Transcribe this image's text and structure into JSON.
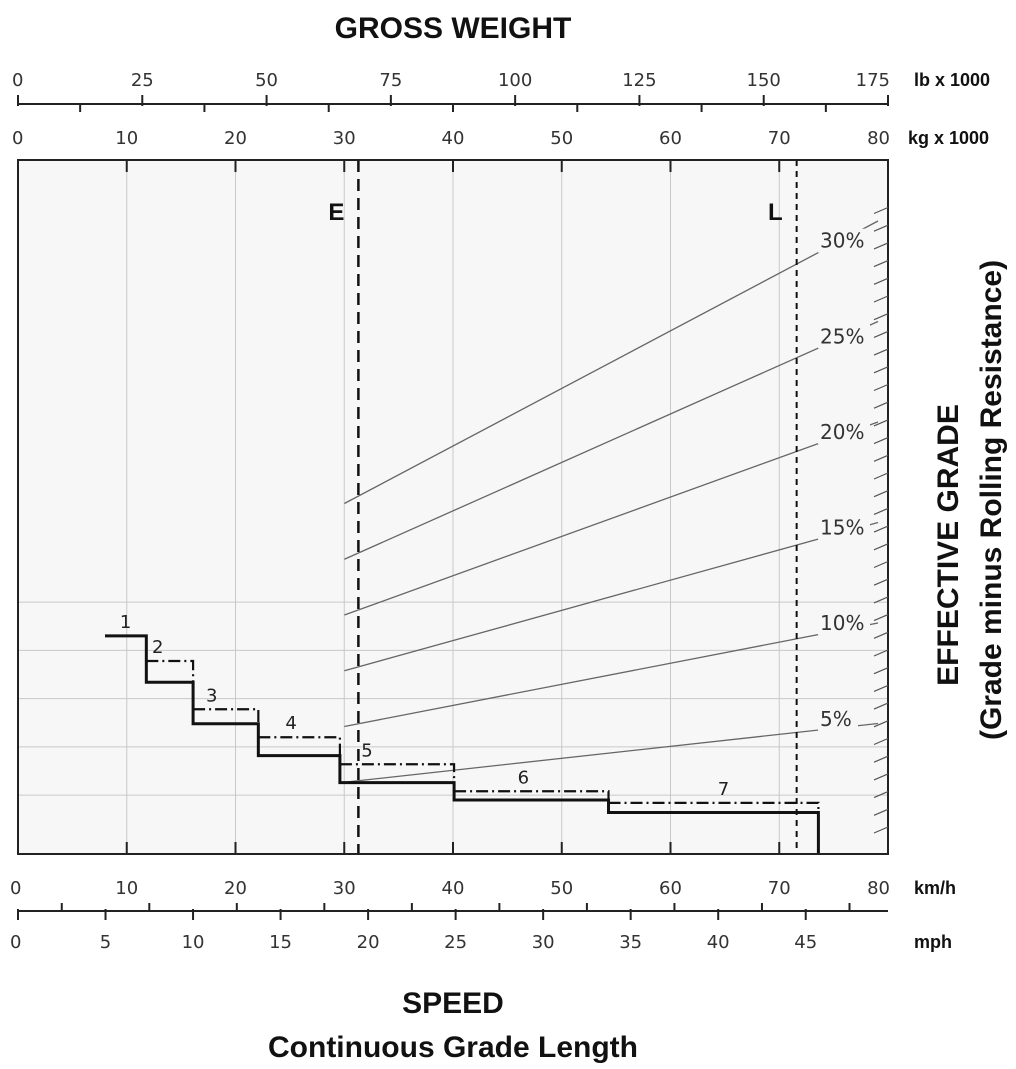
{
  "chart_data": {
    "type": "line",
    "title": "GROSS WEIGHT",
    "xlabel": "SPEED",
    "xlabel_sub": "Continuous Grade Length",
    "ylabel": "EFFECTIVE GRADE",
    "ylabel_sub": "(Grade minus Rolling Resistance)",
    "weight_axis_lb": {
      "unit": "lb x 1000",
      "ticks": [
        0,
        25,
        50,
        75,
        100,
        125,
        150,
        175
      ],
      "range": [
        0,
        175
      ]
    },
    "weight_axis_kg": {
      "unit": "kg x 1000",
      "ticks": [
        0,
        10,
        20,
        30,
        40,
        50,
        60,
        70,
        80
      ],
      "range": [
        0,
        80
      ]
    },
    "speed_axis_kmh": {
      "unit": "km/h",
      "ticks": [
        0,
        10,
        20,
        30,
        40,
        50,
        60,
        70,
        80
      ],
      "range": [
        0,
        80
      ]
    },
    "speed_axis_mph": {
      "unit": "mph",
      "ticks": [
        0,
        5,
        10,
        15,
        20,
        25,
        30,
        35,
        40,
        45
      ],
      "range": [
        0,
        49.7
      ]
    },
    "grade_lines": [
      {
        "label": "5%",
        "grade": 5
      },
      {
        "label": "10%",
        "grade": 10
      },
      {
        "label": "15%",
        "grade": 15
      },
      {
        "label": "20%",
        "grade": 20
      },
      {
        "label": "25%",
        "grade": 25
      },
      {
        "label": "30%",
        "grade": 30
      }
    ],
    "weight_markers": [
      {
        "label": "E",
        "weight_kg": 31.3
      },
      {
        "label": "L",
        "weight_kg": 71.6
      }
    ],
    "steps": [
      {
        "gear": "1",
        "kmh_start": 8,
        "kmh_end": 11.8,
        "solid": 21.5
      },
      {
        "gear": "2",
        "kmh_start": 11.8,
        "kmh_end": 16.1,
        "solid": 16.7,
        "dashdot": 18.9
      },
      {
        "gear": "3",
        "kmh_start": 16.1,
        "kmh_end": 22.1,
        "solid": 12.4,
        "dashdot": 13.9
      },
      {
        "gear": "4",
        "kmh_start": 22.1,
        "kmh_end": 29.6,
        "solid": 9.1,
        "dashdot": 11.0
      },
      {
        "gear": "5",
        "kmh_start": 29.6,
        "kmh_end": 40.1,
        "solid": 6.3,
        "dashdot": 8.2
      },
      {
        "gear": "6",
        "kmh_start": 40.1,
        "kmh_end": 54.3,
        "solid": 4.5,
        "dashdot": 5.4
      },
      {
        "gear": "7",
        "kmh_start": 54.3,
        "kmh_end": 73.6,
        "solid": 3.2,
        "dashdot": 4.2
      }
    ],
    "grid": true
  }
}
